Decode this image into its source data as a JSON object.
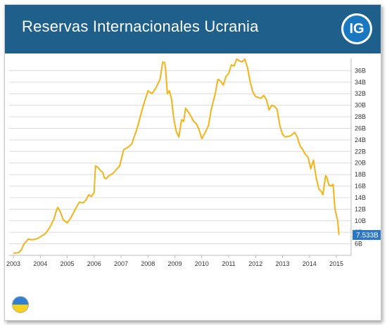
{
  "header": {
    "title": "Reservas Internacionales Ucrania",
    "logo_text": "IG"
  },
  "colors": {
    "header_bg": "#1f5f8b",
    "line": "#f2b416",
    "last_value_badge": "#2a77c9",
    "grid": "#dcdcdc"
  },
  "chart_data": {
    "type": "line",
    "title": "Reservas Internacionales Ucrania",
    "xlabel": "",
    "ylabel": "",
    "x_ticks": [
      "2003",
      "2004",
      "2005",
      "2006",
      "2007",
      "2008",
      "2009",
      "2010",
      "2011",
      "2012",
      "2013",
      "2014",
      "2015"
    ],
    "y_ticks": [
      "6B",
      "8B",
      "10B",
      "12B",
      "14B",
      "16B",
      "18B",
      "20B",
      "22B",
      "24B",
      "26B",
      "28B",
      "30B",
      "32B",
      "34B",
      "36B"
    ],
    "xlim": [
      2003.0,
      2015.0
    ],
    "ylim": [
      4.0,
      38.0
    ],
    "grid": true,
    "y_axis_position": "right",
    "last_value_label": "7.533B",
    "series": [
      {
        "values": [
          [
            2003.0,
            4.4
          ],
          [
            2003.1,
            4.4
          ],
          [
            2003.2,
            4.5
          ],
          [
            2003.3,
            5.0
          ],
          [
            2003.4,
            6.0
          ],
          [
            2003.55,
            6.8
          ],
          [
            2003.7,
            6.7
          ],
          [
            2003.9,
            6.9
          ],
          [
            2004.0,
            7.2
          ],
          [
            2004.2,
            7.8
          ],
          [
            2004.35,
            8.8
          ],
          [
            2004.5,
            10.2
          ],
          [
            2004.6,
            11.8
          ],
          [
            2004.65,
            12.3
          ],
          [
            2004.75,
            11.5
          ],
          [
            2004.85,
            10.2
          ],
          [
            2005.0,
            9.6
          ],
          [
            2005.15,
            10.6
          ],
          [
            2005.3,
            12.0
          ],
          [
            2005.45,
            13.2
          ],
          [
            2005.6,
            13.1
          ],
          [
            2005.7,
            13.6
          ],
          [
            2005.8,
            14.5
          ],
          [
            2005.9,
            14.2
          ],
          [
            2006.0,
            14.9
          ],
          [
            2006.05,
            19.5
          ],
          [
            2006.15,
            19.2
          ],
          [
            2006.25,
            18.6
          ],
          [
            2006.32,
            18.4
          ],
          [
            2006.38,
            17.4
          ],
          [
            2006.45,
            17.3
          ],
          [
            2006.55,
            17.8
          ],
          [
            2006.7,
            18.2
          ],
          [
            2006.85,
            19.0
          ],
          [
            2006.95,
            19.5
          ],
          [
            2007.1,
            22.3
          ],
          [
            2007.25,
            22.7
          ],
          [
            2007.4,
            23.3
          ],
          [
            2007.6,
            26.0
          ],
          [
            2007.8,
            29.5
          ],
          [
            2008.0,
            32.5
          ],
          [
            2008.15,
            32.0
          ],
          [
            2008.3,
            33.0
          ],
          [
            2008.45,
            34.5
          ],
          [
            2008.55,
            37.5
          ],
          [
            2008.62,
            37.4
          ],
          [
            2008.66,
            36.0
          ],
          [
            2008.72,
            32.0
          ],
          [
            2008.8,
            32.5
          ],
          [
            2008.88,
            31.0
          ],
          [
            2008.95,
            28.0
          ],
          [
            2009.05,
            25.5
          ],
          [
            2009.15,
            24.5
          ],
          [
            2009.25,
            27.5
          ],
          [
            2009.33,
            27.2
          ],
          [
            2009.4,
            29.5
          ],
          [
            2009.55,
            28.5
          ],
          [
            2009.7,
            27.2
          ],
          [
            2009.8,
            26.8
          ],
          [
            2009.9,
            25.8
          ],
          [
            2010.0,
            24.2
          ],
          [
            2010.15,
            25.5
          ],
          [
            2010.25,
            26.5
          ],
          [
            2010.35,
            29.2
          ],
          [
            2010.5,
            32.0
          ],
          [
            2010.6,
            34.5
          ],
          [
            2010.7,
            34.2
          ],
          [
            2010.8,
            33.5
          ],
          [
            2010.9,
            35.0
          ],
          [
            2011.0,
            35.5
          ],
          [
            2011.1,
            37.0
          ],
          [
            2011.2,
            36.8
          ],
          [
            2011.3,
            38.0
          ],
          [
            2011.4,
            37.7
          ],
          [
            2011.5,
            37.5
          ],
          [
            2011.6,
            38.0
          ],
          [
            2011.7,
            36.5
          ],
          [
            2011.8,
            34.0
          ],
          [
            2011.9,
            32.3
          ],
          [
            2012.0,
            31.5
          ],
          [
            2012.2,
            31.2
          ],
          [
            2012.3,
            31.7
          ],
          [
            2012.4,
            31.0
          ],
          [
            2012.5,
            29.2
          ],
          [
            2012.6,
            30.0
          ],
          [
            2012.7,
            29.8
          ],
          [
            2012.8,
            29.3
          ],
          [
            2012.9,
            26.5
          ],
          [
            2013.0,
            25.0
          ],
          [
            2013.1,
            24.5
          ],
          [
            2013.3,
            24.7
          ],
          [
            2013.45,
            25.3
          ],
          [
            2013.55,
            24.5
          ],
          [
            2013.65,
            23.0
          ],
          [
            2013.75,
            22.3
          ],
          [
            2013.85,
            21.5
          ],
          [
            2013.95,
            21.0
          ],
          [
            2014.05,
            19.0
          ],
          [
            2014.15,
            20.5
          ],
          [
            2014.25,
            17.5
          ],
          [
            2014.35,
            15.5
          ],
          [
            2014.45,
            15.0
          ],
          [
            2014.5,
            14.5
          ],
          [
            2014.6,
            17.8
          ],
          [
            2014.65,
            17.5
          ],
          [
            2014.72,
            16.2
          ],
          [
            2014.8,
            16.0
          ],
          [
            2014.88,
            16.3
          ],
          [
            2014.95,
            12.0
          ],
          [
            2015.05,
            10.0
          ],
          [
            2015.1,
            7.533
          ]
        ]
      }
    ]
  }
}
